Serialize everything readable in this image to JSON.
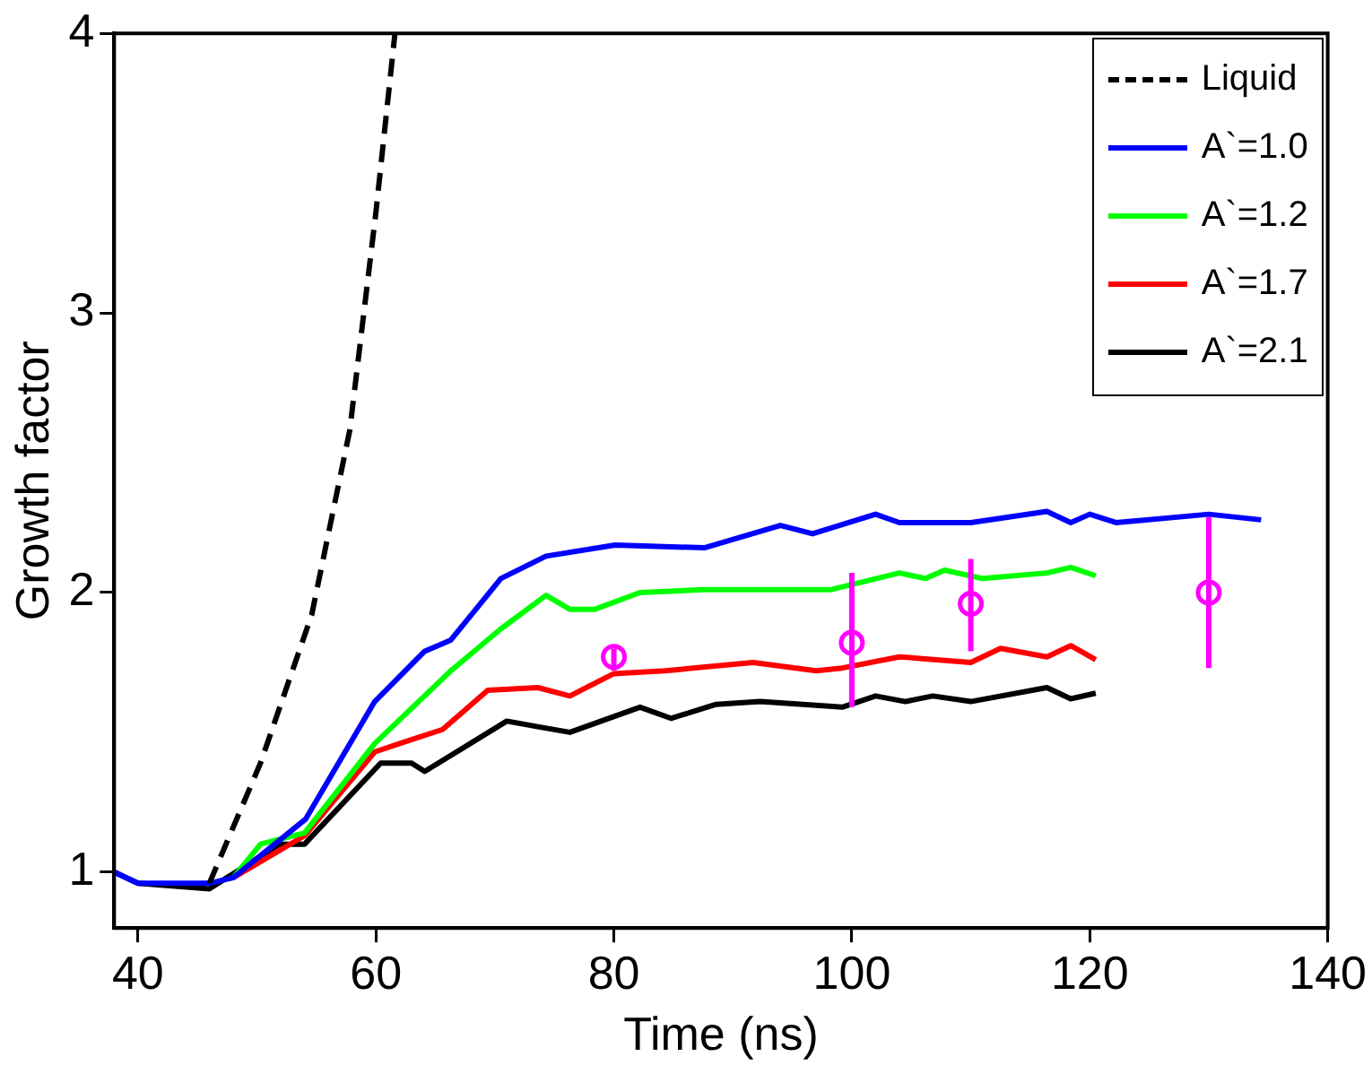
{
  "chart_data": {
    "type": "line",
    "xlabel": "Time (ns)",
    "ylabel": "Growth factor",
    "xlim": [
      38,
      140
    ],
    "ylim": [
      0.8,
      4
    ],
    "xticks": [
      40,
      60,
      80,
      100,
      120,
      140
    ],
    "yticks": [
      1,
      2,
      3,
      4
    ],
    "grid": false,
    "legend": "top right",
    "series": [
      {
        "name": "Liquid",
        "color": "#000000",
        "line_style": "dashed",
        "x": [
          46,
          50.3,
          54.6,
          57.8,
          60,
          61.6
        ],
        "values": [
          0.96,
          1.39,
          1.92,
          2.58,
          3.36,
          4.0
        ]
      },
      {
        "name": "A`=1.0",
        "color": "#0000ff",
        "line_style": "solid",
        "x": [
          38,
          40,
          46,
          48,
          54.1,
          59.9,
          64.1,
          66.3,
          70.5,
          74.3,
          80.1,
          87.6,
          94,
          96.7,
          102,
          104,
          110,
          116.4,
          118.4,
          120,
          122.2,
          130,
          134.4
        ],
        "values": [
          1.0,
          0.96,
          0.96,
          0.98,
          1.19,
          1.61,
          1.79,
          1.83,
          2.05,
          2.13,
          2.17,
          2.16,
          2.24,
          2.21,
          2.28,
          2.25,
          2.25,
          2.29,
          2.25,
          2.28,
          2.25,
          2.28,
          2.26
        ]
      },
      {
        "name": "A`=1.2",
        "color": "#00ff00",
        "line_style": "solid",
        "x": [
          48,
          50.3,
          54,
          59.9,
          66.3,
          70.5,
          74.3,
          76.3,
          78.4,
          82.2,
          87.6,
          98.2,
          104,
          106.2,
          107.8,
          111,
          116.4,
          118.4,
          120.5
        ],
        "values": [
          0.98,
          1.1,
          1.14,
          1.46,
          1.72,
          1.87,
          1.99,
          1.94,
          1.94,
          2.0,
          2.01,
          2.01,
          2.07,
          2.05,
          2.08,
          2.05,
          2.07,
          2.09,
          2.06
        ]
      },
      {
        "name": "A`=1.7",
        "color": "#ff0000",
        "line_style": "solid",
        "x": [
          48,
          54,
          59.9,
          62,
          65.6,
          69.4,
          73.6,
          76.3,
          80,
          84.3,
          91.7,
          97,
          99.2,
          104,
          110,
          112.5,
          116.4,
          118.4,
          120.5
        ],
        "values": [
          0.98,
          1.13,
          1.43,
          1.46,
          1.51,
          1.65,
          1.66,
          1.63,
          1.71,
          1.72,
          1.75,
          1.72,
          1.73,
          1.77,
          1.75,
          1.8,
          1.77,
          1.81,
          1.76
        ]
      },
      {
        "name": "A`=2.1",
        "color": "#000000",
        "line_style": "solid",
        "x": [
          38,
          40,
          46,
          51.9,
          54,
          60.4,
          63,
          64.1,
          71,
          73.6,
          76.3,
          82.2,
          84.8,
          88.6,
          92.3,
          99.2,
          102,
          104.5,
          106.8,
          110,
          116.4,
          118.4,
          120.5
        ],
        "values": [
          1.0,
          0.96,
          0.94,
          1.1,
          1.1,
          1.39,
          1.39,
          1.36,
          1.54,
          1.52,
          1.5,
          1.59,
          1.55,
          1.6,
          1.61,
          1.59,
          1.63,
          1.61,
          1.63,
          1.61,
          1.66,
          1.62,
          1.64
        ]
      },
      {
        "type": "scatter",
        "color": "#ff00ff",
        "marker": "circle",
        "x": [
          80,
          100,
          110,
          130
        ],
        "values": [
          1.77,
          1.82,
          1.96,
          2.0
        ],
        "errors": [
          [
            1.72,
            1.8
          ],
          [
            1.59,
            2.07
          ],
          [
            1.79,
            2.12
          ],
          [
            1.73,
            2.27
          ]
        ]
      }
    ]
  }
}
